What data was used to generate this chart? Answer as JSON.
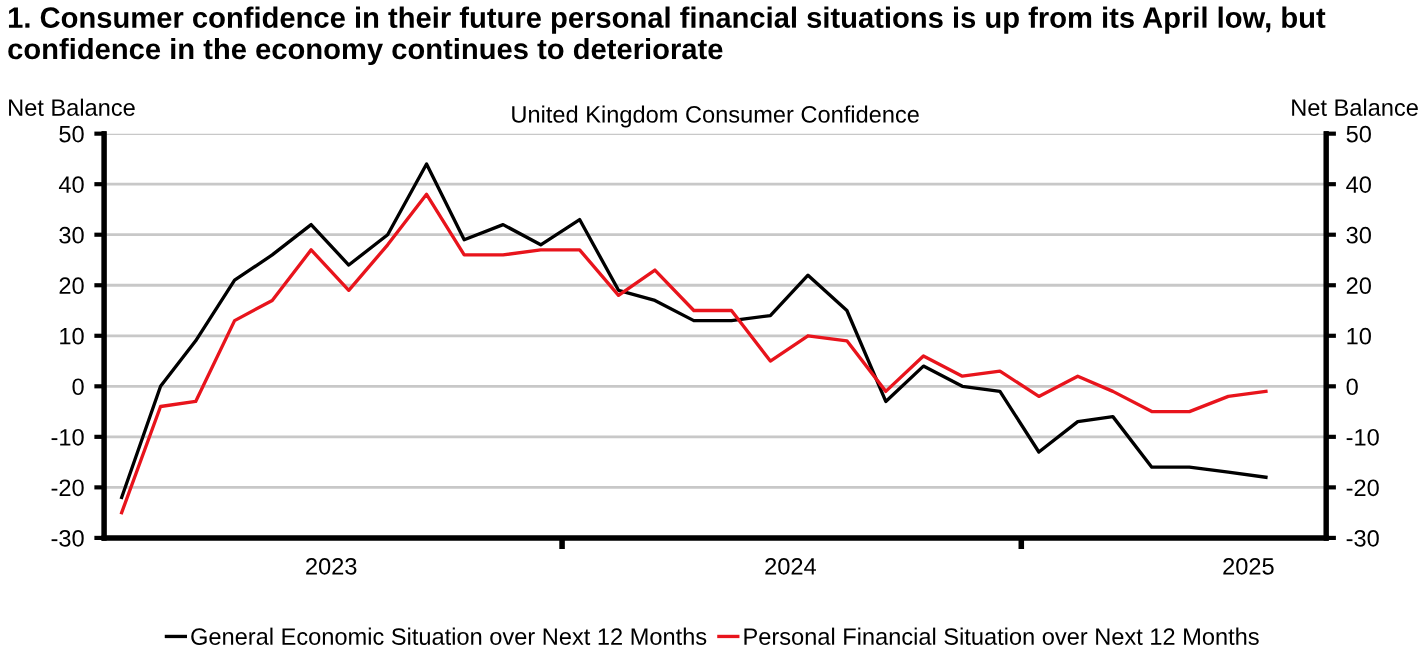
{
  "chart_data": {
    "type": "line",
    "title": "1. Consumer confidence in their future personal financial situations is up from its April low, but confidence in the economy continues to deteriorate",
    "subtitle": "United Kingdom Consumer Confidence",
    "ylabel": "Net Balance",
    "y2label": "Net Balance",
    "x": [
      "2023-01-15",
      "2023-02-15",
      "2023-03-15",
      "2023-04-15",
      "2023-05-15",
      "2023-06-15",
      "2023-07-15",
      "2023-08-15",
      "2023-09-15",
      "2023-10-15",
      "2023-11-15",
      "2023-12-15",
      "2024-01-15",
      "2024-02-15",
      "2024-03-15",
      "2024-04-15",
      "2024-05-15",
      "2024-06-15",
      "2024-07-15",
      "2024-08-15",
      "2024-09-15",
      "2024-10-15",
      "2024-11-15",
      "2024-12-15",
      "2025-01-15",
      "2025-02-15",
      "2025-03-15",
      "2025-04-15",
      "2025-05-15",
      "2025-06-15",
      "2025-07-15"
    ],
    "series": [
      {
        "name": "General Economic Situation over Next 12 Months",
        "color": "#000000",
        "values": [
          -22,
          0,
          9,
          21,
          26,
          32,
          24,
          30,
          44,
          29,
          32,
          28,
          33,
          19,
          17,
          13,
          13,
          14,
          22,
          15,
          -3,
          4,
          0,
          -1,
          -13,
          -7,
          -6,
          -16,
          -16,
          -17,
          -18
        ]
      },
      {
        "name": "Personal Financial Situation over Next 12 Months",
        "color": "#e8141c",
        "values": [
          -25,
          -4,
          -3,
          13,
          17,
          27,
          19,
          28,
          38,
          26,
          26,
          27,
          27,
          18,
          23,
          15,
          15,
          5,
          10,
          9,
          -1,
          6,
          2,
          3,
          -2,
          2,
          -1,
          -5,
          -5,
          -2,
          -1
        ]
      }
    ],
    "xlim": [
      "2023-01-01",
      "2025-09-01"
    ],
    "xticks": [
      {
        "value": "2023-07-01",
        "label": "2023"
      },
      {
        "value": "2024-01-01",
        "label": null
      },
      {
        "value": "2024-07-01",
        "label": "2024"
      },
      {
        "value": "2025-01-01",
        "label": null
      },
      {
        "value": "2025-07-01",
        "label": "2025"
      }
    ],
    "ylim": [
      -30,
      50
    ],
    "yticks": [
      -30,
      -20,
      -10,
      0,
      10,
      20,
      30,
      40,
      50
    ],
    "y2lim": [
      -30,
      50
    ],
    "y2ticks": [
      -30,
      -20,
      -10,
      0,
      10,
      20,
      30,
      40,
      50
    ],
    "grid": "y",
    "legend": "bottom",
    "line_style": "solid",
    "marker": "none"
  }
}
